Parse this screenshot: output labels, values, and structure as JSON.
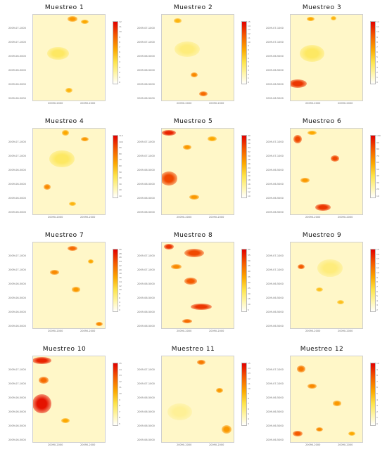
{
  "chart_data": [
    {
      "type": "heatmap",
      "title": "Muestreo 1",
      "yticks": [
        "2009-07-1000",
        "2009-07-1000",
        "2009-06-5000",
        "2009-06-5000",
        "2009-06-5000",
        "2009-06-5000"
      ],
      "xticks": [
        "20090-2000",
        "20090-2000"
      ],
      "scale": [
        "12",
        "11",
        "10",
        "9",
        "8",
        "7",
        "6",
        "5",
        "4",
        "3",
        "2",
        "1",
        "0"
      ],
      "hotspots": [
        {
          "u": 0.55,
          "v": 0.05,
          "w": 0.14,
          "h": 0.06,
          "level": 0.55
        },
        {
          "u": 0.72,
          "v": 0.08,
          "w": 0.1,
          "h": 0.05,
          "level": 0.5
        },
        {
          "u": 0.5,
          "v": 0.88,
          "w": 0.1,
          "h": 0.06,
          "level": 0.45
        },
        {
          "u": 0.35,
          "v": 0.45,
          "w": 0.3,
          "h": 0.15,
          "level": 0.2
        }
      ]
    },
    {
      "type": "heatmap",
      "title": "Muestreo 2",
      "yticks": [
        "2009-07-1000",
        "2009-07-1000",
        "2009-06-5000",
        "2009-06-5000",
        "2009-06-5000",
        "2009-06-5000"
      ],
      "xticks": [
        "20090-2000",
        "20090-2000"
      ],
      "scale": [
        "15",
        "14",
        "13",
        "12",
        "11",
        "10",
        "9",
        "8",
        "7",
        "6",
        "5",
        "4",
        "3",
        "2",
        "1",
        "0"
      ],
      "hotspots": [
        {
          "u": 0.22,
          "v": 0.07,
          "w": 0.1,
          "h": 0.05,
          "level": 0.45
        },
        {
          "u": 0.45,
          "v": 0.7,
          "w": 0.1,
          "h": 0.06,
          "level": 0.6
        },
        {
          "u": 0.58,
          "v": 0.92,
          "w": 0.12,
          "h": 0.06,
          "level": 0.7
        },
        {
          "u": 0.35,
          "v": 0.4,
          "w": 0.35,
          "h": 0.18,
          "level": 0.15
        }
      ]
    },
    {
      "type": "heatmap",
      "title": "Muestreo 3",
      "yticks": [
        "2009-07-1000",
        "2009-07-1000",
        "2009-06-5000",
        "2009-06-5000",
        "2009-06-5000",
        "2009-06-5000"
      ],
      "xticks": [
        "20090-2000",
        "20090-2000"
      ],
      "scale": [
        "12",
        "11",
        "10",
        "9",
        "8",
        "7",
        "6",
        "5",
        "4",
        "3",
        "2",
        "1",
        "0"
      ],
      "hotspots": [
        {
          "u": 0.1,
          "v": 0.8,
          "w": 0.26,
          "h": 0.1,
          "level": 0.85
        },
        {
          "u": 0.28,
          "v": 0.05,
          "w": 0.1,
          "h": 0.05,
          "level": 0.5
        },
        {
          "u": 0.6,
          "v": 0.04,
          "w": 0.08,
          "h": 0.05,
          "level": 0.45
        },
        {
          "u": 0.3,
          "v": 0.45,
          "w": 0.35,
          "h": 0.2,
          "level": 0.2
        }
      ]
    },
    {
      "type": "heatmap",
      "title": "Muestreo 4",
      "yticks": [
        "2009-07-1000",
        "2009-07-1000",
        "2009-06-5000",
        "2009-06-5000",
        "2009-06-5000",
        "2009-06-5000"
      ],
      "xticks": [
        "20090-2000",
        "20090-2000"
      ],
      "scale": [
        "110",
        "100",
        "90",
        "80",
        "70",
        "60",
        "50",
        "40",
        "30",
        "20",
        "10"
      ],
      "hotspots": [
        {
          "u": 0.45,
          "v": 0.05,
          "w": 0.1,
          "h": 0.06,
          "level": 0.5
        },
        {
          "u": 0.72,
          "v": 0.12,
          "w": 0.1,
          "h": 0.05,
          "level": 0.55
        },
        {
          "u": 0.2,
          "v": 0.68,
          "w": 0.1,
          "h": 0.06,
          "level": 0.6
        },
        {
          "u": 0.55,
          "v": 0.88,
          "w": 0.1,
          "h": 0.05,
          "level": 0.45
        },
        {
          "u": 0.4,
          "v": 0.35,
          "w": 0.35,
          "h": 0.2,
          "level": 0.2
        }
      ]
    },
    {
      "type": "heatmap",
      "title": "Muestreo 5",
      "yticks": [
        "2009-07-1000",
        "2009-07-1000",
        "2009-06-5000",
        "2009-06-5000",
        "2009-06-5000",
        "2009-06-5000"
      ],
      "xticks": [
        "20090-2000",
        "20090-2000"
      ],
      "scale": [
        "40",
        "38",
        "36",
        "34",
        "32",
        "30",
        "28",
        "26",
        "24",
        "22",
        "20",
        "18",
        "16",
        "14",
        "12",
        "10"
      ],
      "hotspots": [
        {
          "u": 0.1,
          "v": 0.05,
          "w": 0.2,
          "h": 0.07,
          "level": 0.9
        },
        {
          "u": 0.1,
          "v": 0.58,
          "w": 0.24,
          "h": 0.16,
          "level": 0.8
        },
        {
          "u": 0.35,
          "v": 0.22,
          "w": 0.12,
          "h": 0.06,
          "level": 0.55
        },
        {
          "u": 0.7,
          "v": 0.12,
          "w": 0.12,
          "h": 0.06,
          "level": 0.5
        },
        {
          "u": 0.45,
          "v": 0.8,
          "w": 0.14,
          "h": 0.06,
          "level": 0.55
        }
      ]
    },
    {
      "type": "heatmap",
      "title": "Muestreo 6",
      "yticks": [
        "2009-07-1000",
        "2009-07-1000",
        "2009-06-5000",
        "2009-06-5000",
        "2009-06-5000",
        "2009-06-5000"
      ],
      "xticks": [
        "20090-2000",
        "20090-2000"
      ],
      "scale": [
        "100",
        "90",
        "80",
        "70",
        "60",
        "50",
        "40",
        "30",
        "20",
        "10"
      ],
      "hotspots": [
        {
          "u": 0.1,
          "v": 0.12,
          "w": 0.12,
          "h": 0.1,
          "level": 0.8
        },
        {
          "u": 0.62,
          "v": 0.35,
          "w": 0.12,
          "h": 0.07,
          "level": 0.8
        },
        {
          "u": 0.45,
          "v": 0.92,
          "w": 0.22,
          "h": 0.08,
          "level": 0.85
        },
        {
          "u": 0.3,
          "v": 0.05,
          "w": 0.12,
          "h": 0.05,
          "level": 0.5
        },
        {
          "u": 0.2,
          "v": 0.6,
          "w": 0.12,
          "h": 0.06,
          "level": 0.55
        }
      ]
    },
    {
      "type": "heatmap",
      "title": "Muestreo 7",
      "yticks": [
        "2009-07-1000",
        "2009-07-1000",
        "2009-06-5000",
        "2009-06-5000",
        "2009-06-5000",
        "2009-06-5000"
      ],
      "xticks": [
        "20090-2000",
        "20090-2000"
      ],
      "scale": [
        "30",
        "28",
        "26",
        "24",
        "22",
        "20",
        "18",
        "16",
        "14",
        "12",
        "10",
        "8",
        "6",
        "4",
        "2",
        "0"
      ],
      "hotspots": [
        {
          "u": 0.55,
          "v": 0.07,
          "w": 0.14,
          "h": 0.06,
          "level": 0.7
        },
        {
          "u": 0.3,
          "v": 0.35,
          "w": 0.12,
          "h": 0.06,
          "level": 0.6
        },
        {
          "u": 0.6,
          "v": 0.55,
          "w": 0.12,
          "h": 0.06,
          "level": 0.55
        },
        {
          "u": 0.8,
          "v": 0.22,
          "w": 0.08,
          "h": 0.05,
          "level": 0.5
        },
        {
          "u": 0.92,
          "v": 0.95,
          "w": 0.1,
          "h": 0.05,
          "level": 0.6
        }
      ]
    },
    {
      "type": "heatmap",
      "title": "Muestreo 8",
      "yticks": [
        "2009-07-1000",
        "2009-07-1000",
        "2009-06-5000",
        "2009-06-5000",
        "2009-06-5000",
        "2009-06-5000"
      ],
      "xticks": [
        "20090-2000",
        "20090-2000"
      ],
      "scale": [
        "60",
        "55",
        "50",
        "45",
        "40",
        "35",
        "30",
        "25",
        "20",
        "15",
        "10",
        "5"
      ],
      "hotspots": [
        {
          "u": 0.1,
          "v": 0.05,
          "w": 0.14,
          "h": 0.07,
          "level": 0.85
        },
        {
          "u": 0.45,
          "v": 0.12,
          "w": 0.28,
          "h": 0.1,
          "level": 0.8
        },
        {
          "u": 0.4,
          "v": 0.45,
          "w": 0.18,
          "h": 0.08,
          "level": 0.75
        },
        {
          "u": 0.55,
          "v": 0.75,
          "w": 0.3,
          "h": 0.08,
          "level": 0.85
        },
        {
          "u": 0.35,
          "v": 0.92,
          "w": 0.14,
          "h": 0.05,
          "level": 0.7
        },
        {
          "u": 0.2,
          "v": 0.28,
          "w": 0.14,
          "h": 0.06,
          "level": 0.6
        }
      ]
    },
    {
      "type": "heatmap",
      "title": "Muestreo 9",
      "yticks": [
        "2009-07-1000",
        "2009-07-1000",
        "2009-06-5000",
        "2009-06-5000",
        "2009-06-5000",
        "2009-06-5000"
      ],
      "xticks": [
        "20090-2000",
        "20090-2000"
      ],
      "scale": [
        "15",
        "14",
        "13",
        "12",
        "11",
        "10",
        "9",
        "8",
        "7",
        "6",
        "5",
        "4",
        "3",
        "2"
      ],
      "hotspots": [
        {
          "u": 0.15,
          "v": 0.28,
          "w": 0.1,
          "h": 0.06,
          "level": 0.75
        },
        {
          "u": 0.4,
          "v": 0.55,
          "w": 0.1,
          "h": 0.05,
          "level": 0.4
        },
        {
          "u": 0.7,
          "v": 0.7,
          "w": 0.1,
          "h": 0.05,
          "level": 0.4
        },
        {
          "u": 0.55,
          "v": 0.3,
          "w": 0.35,
          "h": 0.2,
          "level": 0.15
        }
      ]
    },
    {
      "type": "heatmap",
      "title": "Muestreo 10",
      "yticks": [
        "2009-07-1000",
        "2009-07-1000",
        "2009-06-5000",
        "2009-06-5000",
        "2009-06-5000",
        "2009-06-5000"
      ],
      "xticks": [
        "20090-2000",
        "20090-2000"
      ],
      "scale": [
        "15",
        "14",
        "13",
        "12",
        "11",
        "10",
        "9",
        "8",
        "7",
        "6",
        "5"
      ],
      "hotspots": [
        {
          "u": 0.12,
          "v": 0.55,
          "w": 0.26,
          "h": 0.22,
          "level": 0.95
        },
        {
          "u": 0.12,
          "v": 0.05,
          "w": 0.26,
          "h": 0.08,
          "level": 0.9
        },
        {
          "u": 0.15,
          "v": 0.28,
          "w": 0.14,
          "h": 0.08,
          "level": 0.7
        },
        {
          "u": 0.45,
          "v": 0.75,
          "w": 0.12,
          "h": 0.06,
          "level": 0.5
        }
      ]
    },
    {
      "type": "heatmap",
      "title": "Muestreo 11",
      "yticks": [
        "2009-07-1000",
        "2009-07-1000",
        "2009-06-5000",
        "2009-06-5000",
        "2009-06-5000",
        "2009-06-5000"
      ],
      "xticks": [
        "20090-2000",
        "20090-2000"
      ],
      "scale": [
        "15",
        "14",
        "13",
        "12",
        "11",
        "10",
        "9",
        "8",
        "7",
        "6",
        "5",
        "4",
        "3"
      ],
      "hotspots": [
        {
          "u": 0.55,
          "v": 0.07,
          "w": 0.12,
          "h": 0.06,
          "level": 0.65
        },
        {
          "u": 0.8,
          "v": 0.4,
          "w": 0.1,
          "h": 0.06,
          "level": 0.55
        },
        {
          "u": 0.9,
          "v": 0.85,
          "w": 0.14,
          "h": 0.1,
          "level": 0.55
        },
        {
          "u": 0.25,
          "v": 0.65,
          "w": 0.35,
          "h": 0.2,
          "level": 0.1
        }
      ]
    },
    {
      "type": "heatmap",
      "title": "Muestreo 12",
      "yticks": [
        "2009-07-1000",
        "2009-07-1000",
        "2009-06-5000",
        "2009-06-5000",
        "2009-06-5000",
        "2009-06-5000"
      ],
      "xticks": [
        "20090-2000",
        "20090-2000"
      ],
      "scale": [
        "10",
        "9",
        "8",
        "7",
        "6",
        "5",
        "4",
        "3",
        "2",
        "1",
        "0"
      ],
      "hotspots": [
        {
          "u": 0.15,
          "v": 0.15,
          "w": 0.12,
          "h": 0.08,
          "level": 0.65
        },
        {
          "u": 0.3,
          "v": 0.35,
          "w": 0.12,
          "h": 0.06,
          "level": 0.6
        },
        {
          "u": 0.65,
          "v": 0.55,
          "w": 0.12,
          "h": 0.06,
          "level": 0.55
        },
        {
          "u": 0.1,
          "v": 0.9,
          "w": 0.14,
          "h": 0.07,
          "level": 0.75
        },
        {
          "u": 0.4,
          "v": 0.85,
          "w": 0.1,
          "h": 0.05,
          "level": 0.6
        },
        {
          "u": 0.85,
          "v": 0.9,
          "w": 0.1,
          "h": 0.05,
          "level": 0.5
        }
      ]
    }
  ]
}
